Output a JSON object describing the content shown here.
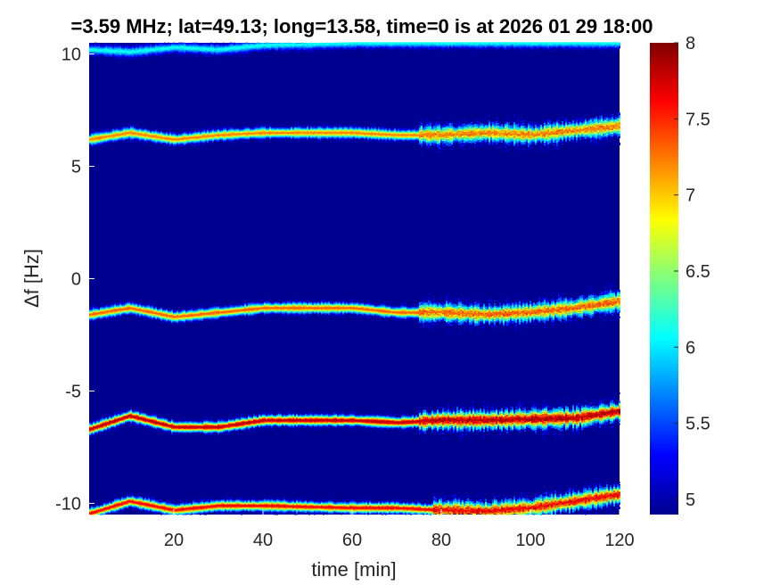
{
  "chart_data": {
    "type": "heatmap",
    "title": "=3.59 MHz;  lat=49.13; long=13.58, time=0 is at 2026 01 29 18:00",
    "xlabel": "time [min]",
    "ylabel": "Δf [Hz]",
    "xlim": [
      1,
      120
    ],
    "ylim": [
      -10.5,
      10.5
    ],
    "xticks": [
      20,
      40,
      60,
      80,
      100,
      120
    ],
    "xtick_labels": [
      "20",
      "40",
      "60",
      "80",
      "100",
      "120"
    ],
    "yticks": [
      10,
      5,
      0,
      -5,
      -10
    ],
    "ytick_labels": [
      "10",
      "5",
      "0",
      "-5",
      "-10"
    ],
    "colorbar": {
      "range": [
        4.9,
        8.0
      ],
      "ticks": [
        8,
        7.5,
        7,
        6.5,
        6,
        5.5,
        5
      ],
      "tick_labels": [
        "8",
        "7.5",
        "7",
        "6.5",
        "6",
        "5.5",
        "5"
      ],
      "colormap": "jet"
    },
    "background_value": 4.95,
    "grid": false,
    "bands": [
      {
        "center_points": [
          [
            1,
            -10.45
          ],
          [
            10,
            -9.9
          ],
          [
            20,
            -10.3
          ],
          [
            30,
            -10.1
          ],
          [
            40,
            -10.1
          ],
          [
            60,
            -10.2
          ],
          [
            70,
            -10.2
          ],
          [
            80,
            -10.3
          ],
          [
            90,
            -10.35
          ],
          [
            100,
            -10.2
          ],
          [
            110,
            -9.9
          ],
          [
            120,
            -9.6
          ]
        ],
        "peak": 7.6,
        "noise_from": 78
      },
      {
        "center_points": [
          [
            1,
            -6.7
          ],
          [
            10,
            -6.1
          ],
          [
            20,
            -6.6
          ],
          [
            30,
            -6.6
          ],
          [
            40,
            -6.3
          ],
          [
            50,
            -6.3
          ],
          [
            60,
            -6.3
          ],
          [
            70,
            -6.4
          ],
          [
            80,
            -6.3
          ],
          [
            90,
            -6.3
          ],
          [
            100,
            -6.25
          ],
          [
            110,
            -6.2
          ],
          [
            120,
            -5.9
          ]
        ],
        "peak": 7.8,
        "noise_from": 75
      },
      {
        "center_points": [
          [
            1,
            -1.6
          ],
          [
            10,
            -1.3
          ],
          [
            20,
            -1.7
          ],
          [
            30,
            -1.5
          ],
          [
            40,
            -1.3
          ],
          [
            50,
            -1.3
          ],
          [
            60,
            -1.3
          ],
          [
            70,
            -1.5
          ],
          [
            80,
            -1.5
          ],
          [
            90,
            -1.6
          ],
          [
            100,
            -1.5
          ],
          [
            110,
            -1.3
          ],
          [
            120,
            -1.0
          ]
        ],
        "peak": 7.3,
        "noise_from": 75
      },
      {
        "center_points": [
          [
            1,
            6.2
          ],
          [
            10,
            6.5
          ],
          [
            20,
            6.2
          ],
          [
            30,
            6.4
          ],
          [
            40,
            6.5
          ],
          [
            50,
            6.5
          ],
          [
            60,
            6.5
          ],
          [
            70,
            6.4
          ],
          [
            80,
            6.4
          ],
          [
            90,
            6.5
          ],
          [
            100,
            6.4
          ],
          [
            110,
            6.6
          ],
          [
            120,
            6.8
          ]
        ],
        "peak": 7.2,
        "noise_from": 75
      },
      {
        "center_points": [
          [
            1,
            10.2
          ],
          [
            10,
            10.1
          ],
          [
            20,
            10.3
          ],
          [
            30,
            10.2
          ],
          [
            40,
            10.4
          ],
          [
            60,
            10.5
          ],
          [
            80,
            10.5
          ],
          [
            120,
            10.5
          ]
        ],
        "peak": 6.1,
        "noise_from": 200
      }
    ]
  }
}
